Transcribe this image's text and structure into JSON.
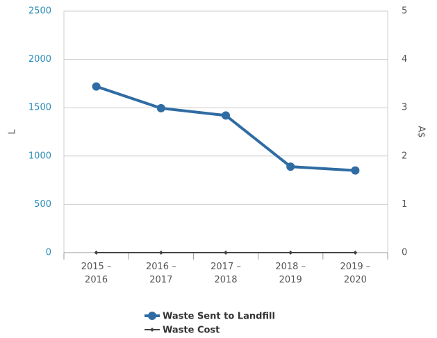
{
  "chart_data": {
    "type": "line",
    "categories": [
      "2015 –\n2016",
      "2016 –\n2017",
      "2017 –\n2018",
      "2018 –\n2019",
      "2019 –\n2020"
    ],
    "series": [
      {
        "name": "Waste Sent to Landfill",
        "color": "#2f6ca3",
        "values": [
          1720,
          1495,
          1420,
          890,
          850
        ]
      },
      {
        "name": "Waste Cost",
        "color": "#444444",
        "axis": "y2",
        "values": [
          0,
          0,
          0,
          0,
          0
        ]
      }
    ],
    "ylabel": "L",
    "y2label": "A$",
    "ylim": [
      0,
      2500
    ],
    "yticks": [
      0,
      500,
      1000,
      1500,
      2000,
      2500
    ],
    "y2lim": [
      0,
      5
    ],
    "y2ticks": [
      0,
      1,
      2,
      3,
      4,
      5
    ],
    "grid": true,
    "legend": "bottom"
  }
}
